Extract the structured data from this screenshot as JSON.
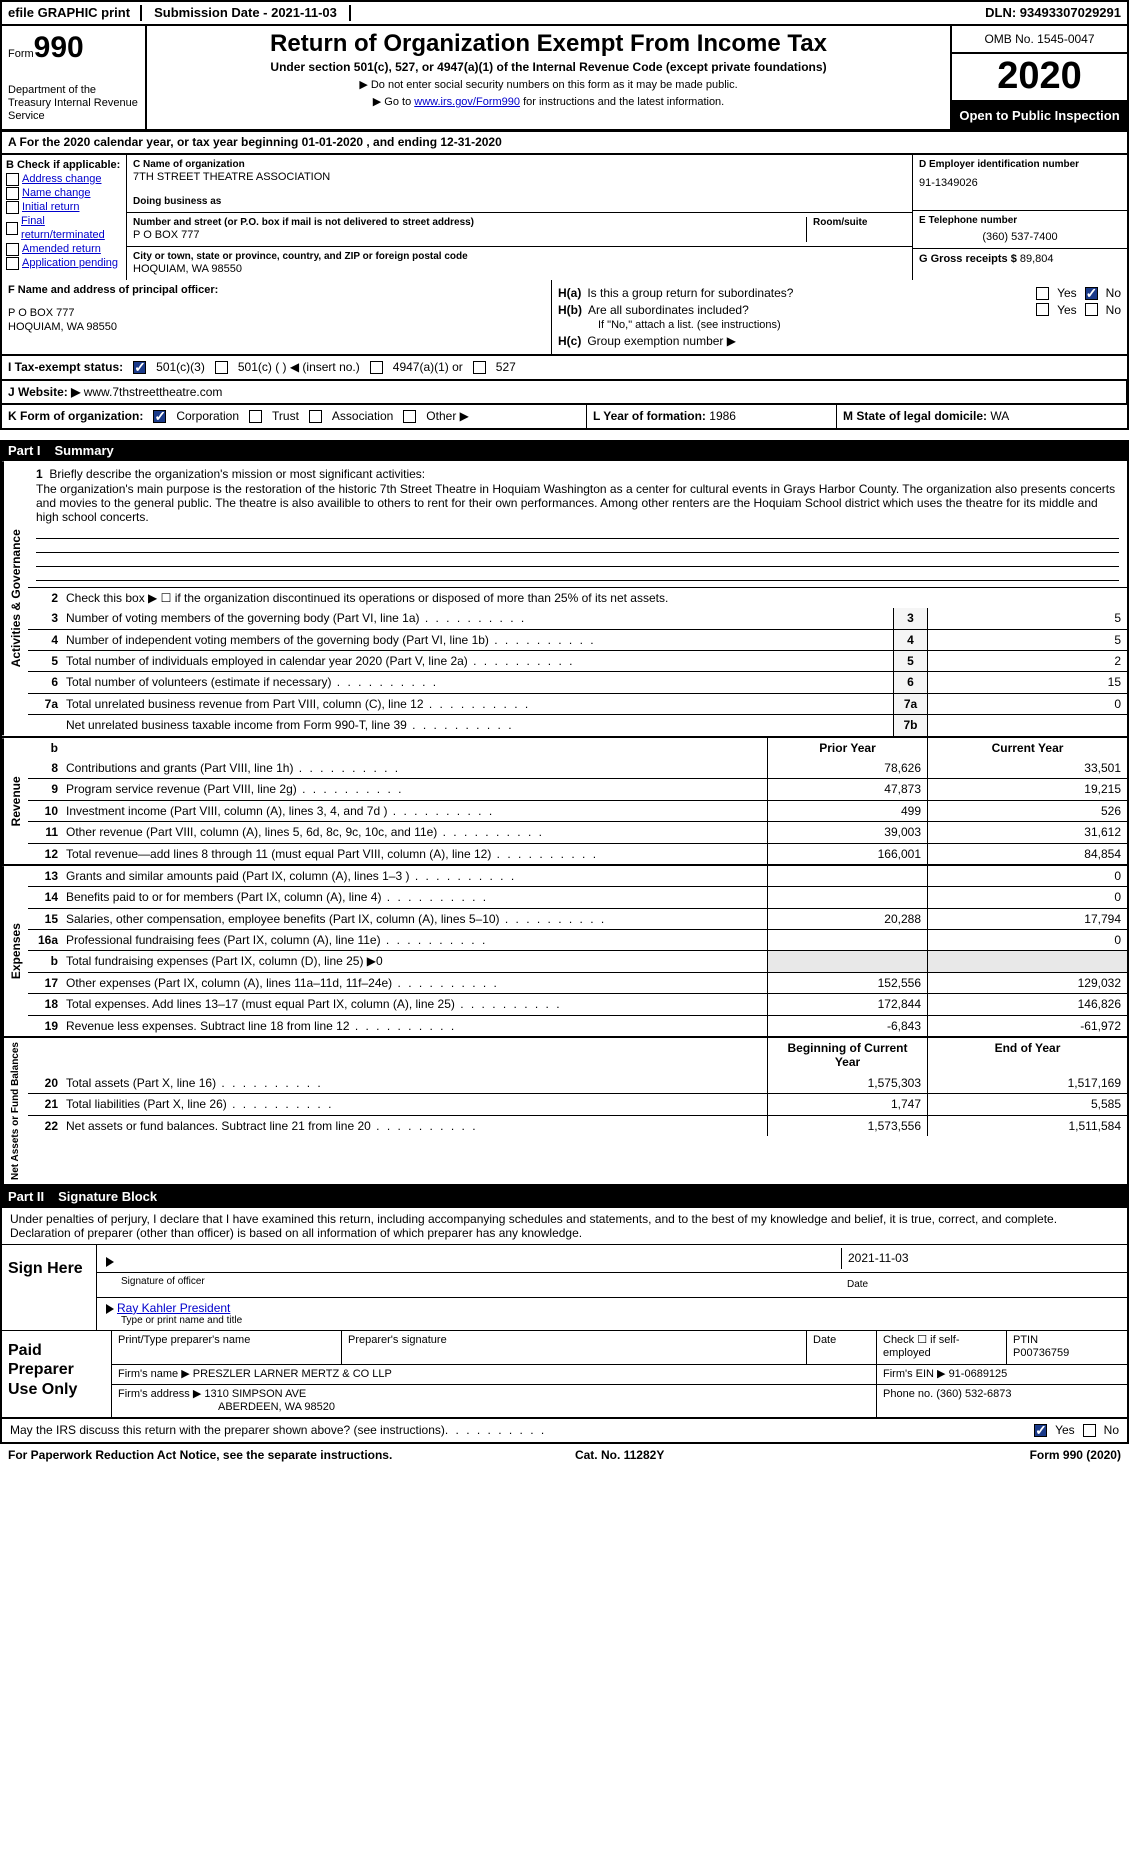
{
  "top": {
    "efile": "efile GRAPHIC print",
    "submission_label": "Submission Date - 2021-11-03",
    "dln": "DLN: 93493307029291"
  },
  "header": {
    "form_label": "Form",
    "form_no": "990",
    "dept": "Department of the Treasury Internal Revenue Service",
    "title": "Return of Organization Exempt From Income Tax",
    "subtitle": "Under section 501(c), 527, or 4947(a)(1) of the Internal Revenue Code (except private foundations)",
    "note1": "▶ Do not enter social security numbers on this form as it may be made public.",
    "note2_pre": "▶ Go to ",
    "note2_link": "www.irs.gov/Form990",
    "note2_post": " for instructions and the latest information.",
    "omb": "OMB No. 1545-0047",
    "year": "2020",
    "open": "Open to Public Inspection"
  },
  "section_a": "A For the 2020 calendar year, or tax year beginning 01-01-2020   , and ending 12-31-2020",
  "col_b": {
    "hdr": "B Check if applicable:",
    "items": [
      "Address change",
      "Name change",
      "Initial return",
      "Final return/terminated",
      "Amended return",
      "Application pending"
    ]
  },
  "col_c": {
    "name_lbl": "C Name of organization",
    "name": "7TH STREET THEATRE ASSOCIATION",
    "dba_lbl": "Doing business as",
    "addr_lbl": "Number and street (or P.O. box if mail is not delivered to street address)",
    "room_lbl": "Room/suite",
    "addr": "P O BOX 777",
    "city_lbl": "City or town, state or province, country, and ZIP or foreign postal code",
    "city": "HOQUIAM, WA  98550"
  },
  "col_d": {
    "ein_lbl": "D Employer identification number",
    "ein": "91-1349026",
    "phone_lbl": "E Telephone number",
    "phone": "(360) 537-7400",
    "gross_lbl": "G Gross receipts $",
    "gross": "89,804"
  },
  "f_block": {
    "lbl": "F  Name and address of principal officer:",
    "l1": "P O BOX 777",
    "l2": "HOQUIAM, WA  98550"
  },
  "h_block": {
    "ha": "Is this a group return for subordinates?",
    "hb": "Are all subordinates included?",
    "hb_note": "If \"No,\" attach a list. (see instructions)",
    "hc": "Group exemption number ▶"
  },
  "status_row": {
    "lbl": "I   Tax-exempt status:",
    "o1": "501(c)(3)",
    "o2": "501(c) (  ) ◀ (insert no.)",
    "o3": "4947(a)(1) or",
    "o4": "527"
  },
  "website": {
    "lbl": "J  Website: ▶",
    "val": "www.7thstreettheatre.com"
  },
  "k_org": {
    "lbl": "K Form of organization:",
    "opts": [
      "Corporation",
      "Trust",
      "Association",
      "Other ▶"
    ],
    "l_lbl": "L Year of formation:",
    "l_val": "1986",
    "m_lbl": "M State of legal domicile:",
    "m_val": "WA"
  },
  "part1": {
    "title": "Part I",
    "name": "Summary",
    "q1_lbl": "Briefly describe the organization's mission or most significant activities:",
    "mission": "The organization's main purpose is the restoration of the historic 7th Street Theatre in Hoquiam Washington as a center for cultural events in Grays Harbor County. The organization also presents concerts and movies to the general public. The theatre is also availible to others to rent for their own performances. Among other renters are the Hoquiam School district which uses the theatre for its middle and high school concerts.",
    "q2": "Check this box ▶ ☐  if the organization discontinued its operations or disposed of more than 25% of its net assets.",
    "rows_gov": [
      {
        "n": "3",
        "d": "Number of voting members of the governing body (Part VI, line 1a)",
        "b": "3",
        "v": "5"
      },
      {
        "n": "4",
        "d": "Number of independent voting members of the governing body (Part VI, line 1b)",
        "b": "4",
        "v": "5"
      },
      {
        "n": "5",
        "d": "Total number of individuals employed in calendar year 2020 (Part V, line 2a)",
        "b": "5",
        "v": "2"
      },
      {
        "n": "6",
        "d": "Total number of volunteers (estimate if necessary)",
        "b": "6",
        "v": "15"
      },
      {
        "n": "7a",
        "d": "Total unrelated business revenue from Part VIII, column (C), line 12",
        "b": "7a",
        "v": "0"
      },
      {
        "n": "",
        "d": "Net unrelated business taxable income from Form 990-T, line 39",
        "b": "7b",
        "v": ""
      }
    ],
    "col_prior": "Prior Year",
    "col_curr": "Current Year",
    "rows_rev": [
      {
        "n": "8",
        "d": "Contributions and grants (Part VIII, line 1h)",
        "p": "78,626",
        "c": "33,501"
      },
      {
        "n": "9",
        "d": "Program service revenue (Part VIII, line 2g)",
        "p": "47,873",
        "c": "19,215"
      },
      {
        "n": "10",
        "d": "Investment income (Part VIII, column (A), lines 3, 4, and 7d )",
        "p": "499",
        "c": "526"
      },
      {
        "n": "11",
        "d": "Other revenue (Part VIII, column (A), lines 5, 6d, 8c, 9c, 10c, and 11e)",
        "p": "39,003",
        "c": "31,612"
      },
      {
        "n": "12",
        "d": "Total revenue—add lines 8 through 11 (must equal Part VIII, column (A), line 12)",
        "p": "166,001",
        "c": "84,854"
      }
    ],
    "rows_exp": [
      {
        "n": "13",
        "d": "Grants and similar amounts paid (Part IX, column (A), lines 1–3 )",
        "p": "",
        "c": "0"
      },
      {
        "n": "14",
        "d": "Benefits paid to or for members (Part IX, column (A), line 4)",
        "p": "",
        "c": "0"
      },
      {
        "n": "15",
        "d": "Salaries, other compensation, employee benefits (Part IX, column (A), lines 5–10)",
        "p": "20,288",
        "c": "17,794"
      },
      {
        "n": "16a",
        "d": "Professional fundraising fees (Part IX, column (A), line 11e)",
        "p": "",
        "c": "0"
      },
      {
        "n": "b",
        "d": "Total fundraising expenses (Part IX, column (D), line 25) ▶0",
        "p": "",
        "c": "",
        "shade": true
      },
      {
        "n": "17",
        "d": "Other expenses (Part IX, column (A), lines 11a–11d, 11f–24e)",
        "p": "152,556",
        "c": "129,032"
      },
      {
        "n": "18",
        "d": "Total expenses. Add lines 13–17 (must equal Part IX, column (A), line 25)",
        "p": "172,844",
        "c": "146,826"
      },
      {
        "n": "19",
        "d": "Revenue less expenses. Subtract line 18 from line 12",
        "p": "-6,843",
        "c": "-61,972"
      }
    ],
    "col_beg": "Beginning of Current Year",
    "col_end": "End of Year",
    "rows_net": [
      {
        "n": "20",
        "d": "Total assets (Part X, line 16)",
        "p": "1,575,303",
        "c": "1,517,169"
      },
      {
        "n": "21",
        "d": "Total liabilities (Part X, line 26)",
        "p": "1,747",
        "c": "5,585"
      },
      {
        "n": "22",
        "d": "Net assets or fund balances. Subtract line 21 from line 20",
        "p": "1,573,556",
        "c": "1,511,584"
      }
    ],
    "side_gov": "Activities & Governance",
    "side_rev": "Revenue",
    "side_exp": "Expenses",
    "side_net": "Net Assets or Fund Balances"
  },
  "part2": {
    "title": "Part II",
    "name": "Signature Block",
    "decl": "Under penalties of perjury, I declare that I have examined this return, including accompanying schedules and statements, and to the best of my knowledge and belief, it is true, correct, and complete. Declaration of preparer (other than officer) is based on all information of which preparer has any knowledge.",
    "sign_here": "Sign Here",
    "sig_officer": "Signature of officer",
    "sig_date": "2021-11-03",
    "date_lbl": "Date",
    "name_title": "Ray Kahler President",
    "name_title_lbl": "Type or print name and title",
    "paid": "Paid Preparer Use Only",
    "p_name_lbl": "Print/Type preparer's name",
    "p_sig_lbl": "Preparer's signature",
    "p_date_lbl": "Date",
    "p_check_lbl": "Check ☐ if self-employed",
    "ptin_lbl": "PTIN",
    "ptin": "P00736759",
    "firm_name_lbl": "Firm's name    ▶",
    "firm_name": "PRESZLER LARNER MERTZ & CO LLP",
    "firm_ein_lbl": "Firm's EIN ▶",
    "firm_ein": "91-0689125",
    "firm_addr_lbl": "Firm's address ▶",
    "firm_addr1": "1310 SIMPSON AVE",
    "firm_addr2": "ABERDEEN, WA  98520",
    "firm_phone_lbl": "Phone no.",
    "firm_phone": "(360) 532-6873",
    "discuss": "May the IRS discuss this return with the preparer shown above? (see instructions)"
  },
  "footer": {
    "left": "For Paperwork Reduction Act Notice, see the separate instructions.",
    "mid": "Cat. No. 11282Y",
    "right": "Form 990 (2020)"
  }
}
